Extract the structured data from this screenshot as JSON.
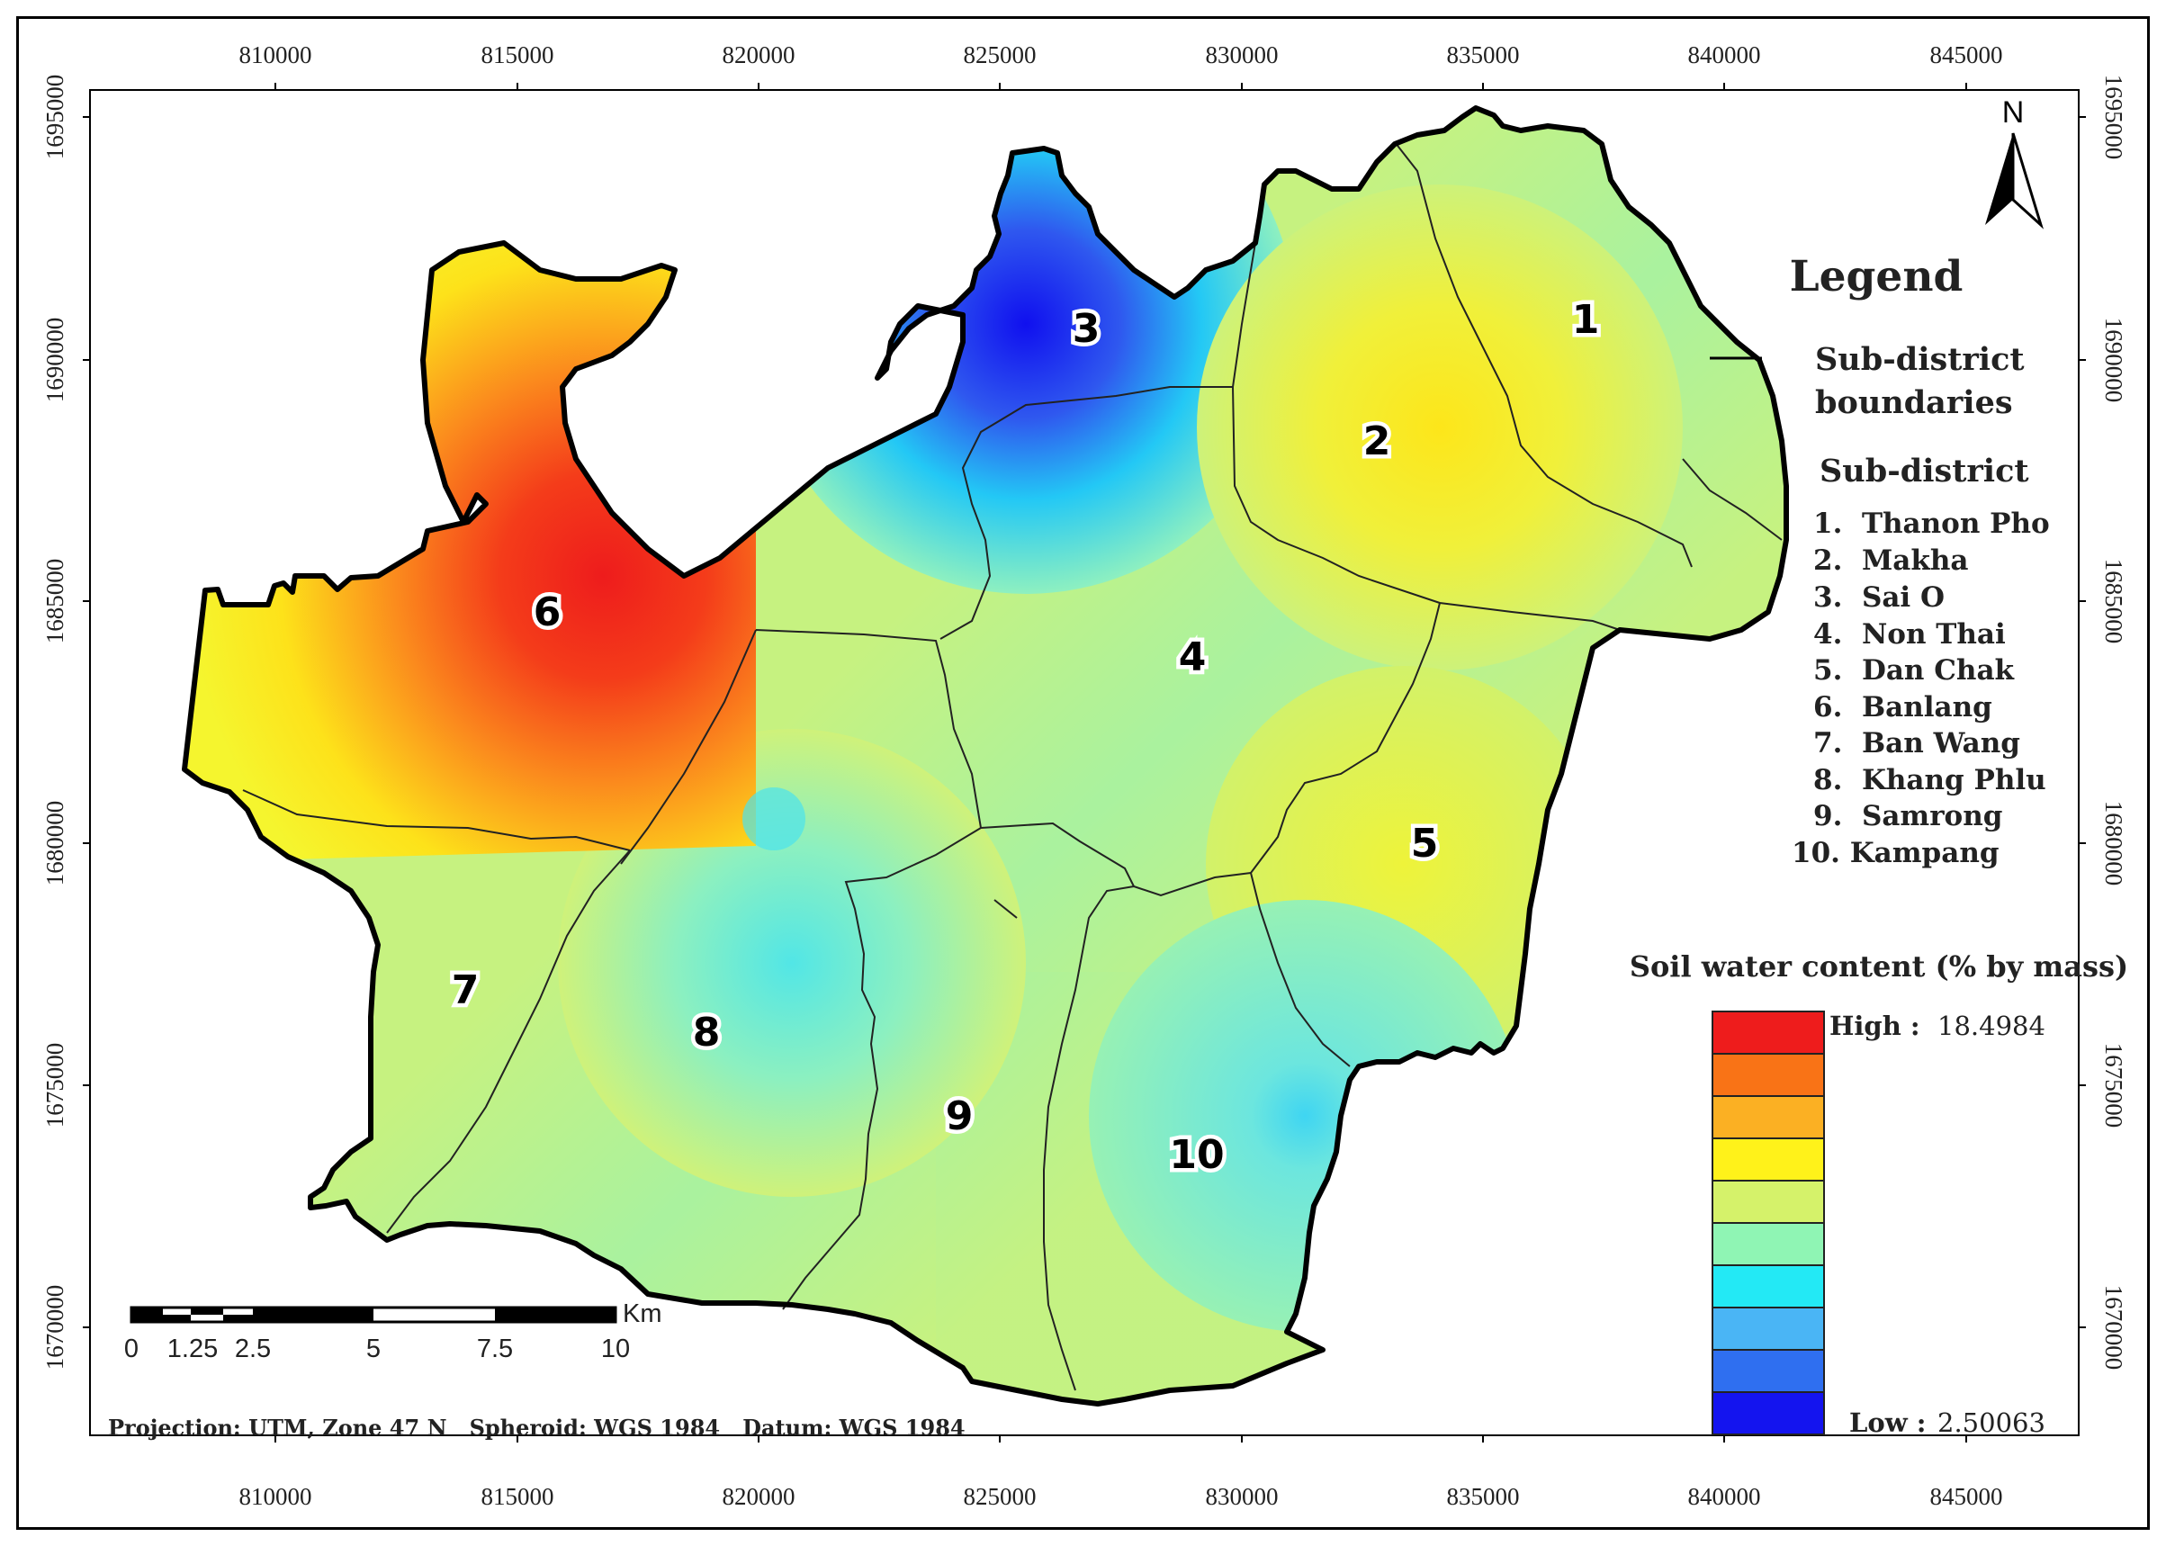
{
  "x_ticks": [
    "810000",
    "815000",
    "820000",
    "825000",
    "830000",
    "835000",
    "840000",
    "845000"
  ],
  "y_ticks": [
    "1695000",
    "1690000",
    "1685000",
    "1680000",
    "1675000",
    "1670000"
  ],
  "north_label": "N",
  "legend": {
    "title": "Legend",
    "boundary_label_1": "Sub-district",
    "boundary_label_2": "boundaries",
    "subdistrict_heading": "Sub-district",
    "items": [
      "1.  Thanon Pho",
      "2.  Makha",
      "3.  Sai O",
      "4.  Non Thai",
      "5.  Dan Chak",
      "6.  Banlang",
      "7.  Ban Wang",
      "8.  Khang Phlu",
      "9.  Samrong",
      "10. Kampang"
    ],
    "ramp_heading": "Soil water content (% by mass)",
    "high_label": "High :",
    "high_value": "18.4984",
    "low_label": "Low :",
    "low_value": "2.50063",
    "ramp_colors": [
      "#ee1c1c",
      "#f97316",
      "#fbb023",
      "#fff21a",
      "#d5f26a",
      "#8ff5b4",
      "#23e9f5",
      "#4ab5f5",
      "#2f6ff0",
      "#1414ef"
    ]
  },
  "zones": [
    "1",
    "2",
    "3",
    "4",
    "5",
    "6",
    "7",
    "8",
    "9",
    "10"
  ],
  "scale_bar": {
    "unit": "Km",
    "labels": [
      "0",
      "1.25",
      "2.5",
      "5",
      "7.5",
      "10"
    ]
  },
  "footer": "Projection: UTM, Zone 47 N   Spheroid: WGS 1984   Datum: WGS 1984"
}
